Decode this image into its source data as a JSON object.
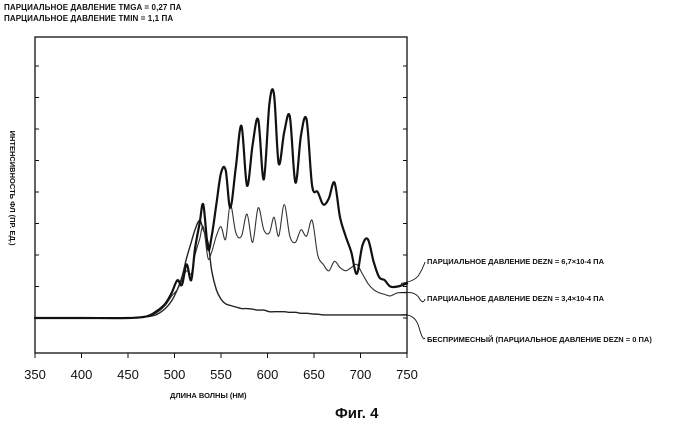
{
  "header": {
    "line1": "ПАРЦИАЛЬНОЕ ДАВЛЕНИЕ TMGA = 0,27 ПА",
    "line2": "ПАРЦИАЛЬНОЕ ДАВЛЕНИЕ TMIN = 1,1 ПА"
  },
  "figure_caption": "Фиг. 4",
  "chart_data": {
    "type": "line",
    "xlabel": "ДЛИНА ВОЛНЫ (НМ)",
    "ylabel": "ИНТЕНСИВНОСТЬ ФЛ (ПР. ЕД.)",
    "xlim": [
      350,
      750
    ],
    "ylim": [
      0,
      10
    ],
    "x_ticks": [
      350,
      400,
      450,
      500,
      550,
      600,
      650,
      700,
      750
    ],
    "y_tick_values": [
      0,
      1,
      2,
      3,
      4,
      5,
      6,
      7,
      8,
      9
    ],
    "grid": false,
    "series": [
      {
        "name": "ПАРЦИАЛЬНОЕ ДАВЛЕНИЕ DEZN = 6,7×10-4 ПА",
        "color": "#111111",
        "stroke_width": 2.2,
        "x": [
          350,
          400,
          450,
          470,
          480,
          490,
          497,
          503,
          508,
          513,
          518,
          522,
          527,
          531,
          536,
          540,
          545,
          550,
          555,
          560,
          566,
          572,
          578,
          584,
          590,
          596,
          602,
          607,
          612,
          618,
          624,
          630,
          636,
          642,
          648,
          654,
          660,
          666,
          672,
          678,
          684,
          690,
          696,
          702,
          708,
          714,
          720,
          726,
          732,
          740,
          750
        ],
        "y": [
          0.0,
          0.0,
          0.0,
          0.05,
          0.2,
          0.45,
          0.8,
          1.2,
          1.05,
          1.7,
          1.2,
          2.2,
          3.0,
          3.6,
          2.2,
          2.6,
          3.6,
          4.6,
          4.7,
          3.5,
          4.8,
          6.1,
          4.2,
          5.5,
          6.3,
          4.4,
          6.8,
          7.1,
          4.9,
          5.9,
          6.4,
          4.3,
          5.8,
          6.3,
          4.2,
          4.0,
          3.6,
          3.8,
          4.3,
          3.2,
          2.6,
          2.1,
          1.4,
          2.3,
          2.5,
          1.8,
          1.3,
          1.2,
          1.0,
          1.0,
          1.1
        ]
      },
      {
        "name": "ПАРЦИАЛЬНОЕ ДАВЛЕНИЕ DEZN = 3,4×10-4 ПА",
        "color": "#333333",
        "stroke_width": 1.1,
        "x": [
          350,
          400,
          450,
          470,
          480,
          490,
          497,
          503,
          508,
          513,
          518,
          522,
          527,
          531,
          536,
          540,
          545,
          550,
          555,
          560,
          566,
          572,
          578,
          584,
          590,
          596,
          602,
          607,
          612,
          618,
          624,
          630,
          636,
          642,
          648,
          654,
          660,
          666,
          672,
          678,
          684,
          690,
          696,
          702,
          708,
          714,
          720,
          726,
          732,
          740,
          750
        ],
        "y": [
          0.0,
          0.0,
          0.0,
          0.05,
          0.15,
          0.4,
          0.7,
          0.9,
          1.2,
          1.5,
          1.4,
          2.0,
          2.5,
          2.9,
          1.9,
          2.1,
          2.6,
          2.9,
          2.5,
          3.6,
          2.7,
          2.6,
          3.3,
          2.4,
          3.5,
          2.8,
          2.7,
          3.2,
          2.6,
          3.6,
          2.6,
          2.4,
          2.8,
          2.6,
          3.1,
          2.0,
          1.7,
          1.5,
          1.8,
          1.6,
          1.5,
          1.6,
          1.7,
          1.4,
          1.1,
          0.9,
          0.8,
          0.75,
          0.7,
          0.8,
          0.8
        ]
      },
      {
        "name": "БЕСПРИМЕСНЫЙ (ПАРЦИАЛЬНОЕ ДАВЛЕНИЕ DEZN = 0 ПА)",
        "color": "#222222",
        "stroke_width": 1.4,
        "x": [
          350,
          400,
          450,
          470,
          480,
          490,
          497,
          503,
          508,
          513,
          518,
          522,
          527,
          531,
          536,
          540,
          545,
          550,
          555,
          560,
          566,
          572,
          578,
          584,
          590,
          596,
          602,
          607,
          612,
          618,
          624,
          630,
          636,
          642,
          648,
          654,
          660,
          666,
          672,
          678,
          684,
          690,
          696,
          702,
          708,
          714,
          720,
          726,
          732,
          740,
          750
        ],
        "y": [
          0.0,
          0.0,
          0.0,
          0.04,
          0.1,
          0.3,
          0.55,
          0.9,
          1.3,
          1.9,
          2.4,
          2.8,
          3.1,
          2.8,
          2.4,
          1.5,
          0.9,
          0.6,
          0.45,
          0.4,
          0.35,
          0.3,
          0.3,
          0.28,
          0.25,
          0.25,
          0.2,
          0.2,
          0.2,
          0.2,
          0.18,
          0.18,
          0.15,
          0.15,
          0.13,
          0.12,
          0.1,
          0.1,
          0.1,
          0.1,
          0.1,
          0.1,
          0.1,
          0.1,
          0.1,
          0.1,
          0.1,
          0.1,
          0.1,
          0.1,
          0.1
        ]
      }
    ],
    "legend": "right, with leader lines"
  }
}
